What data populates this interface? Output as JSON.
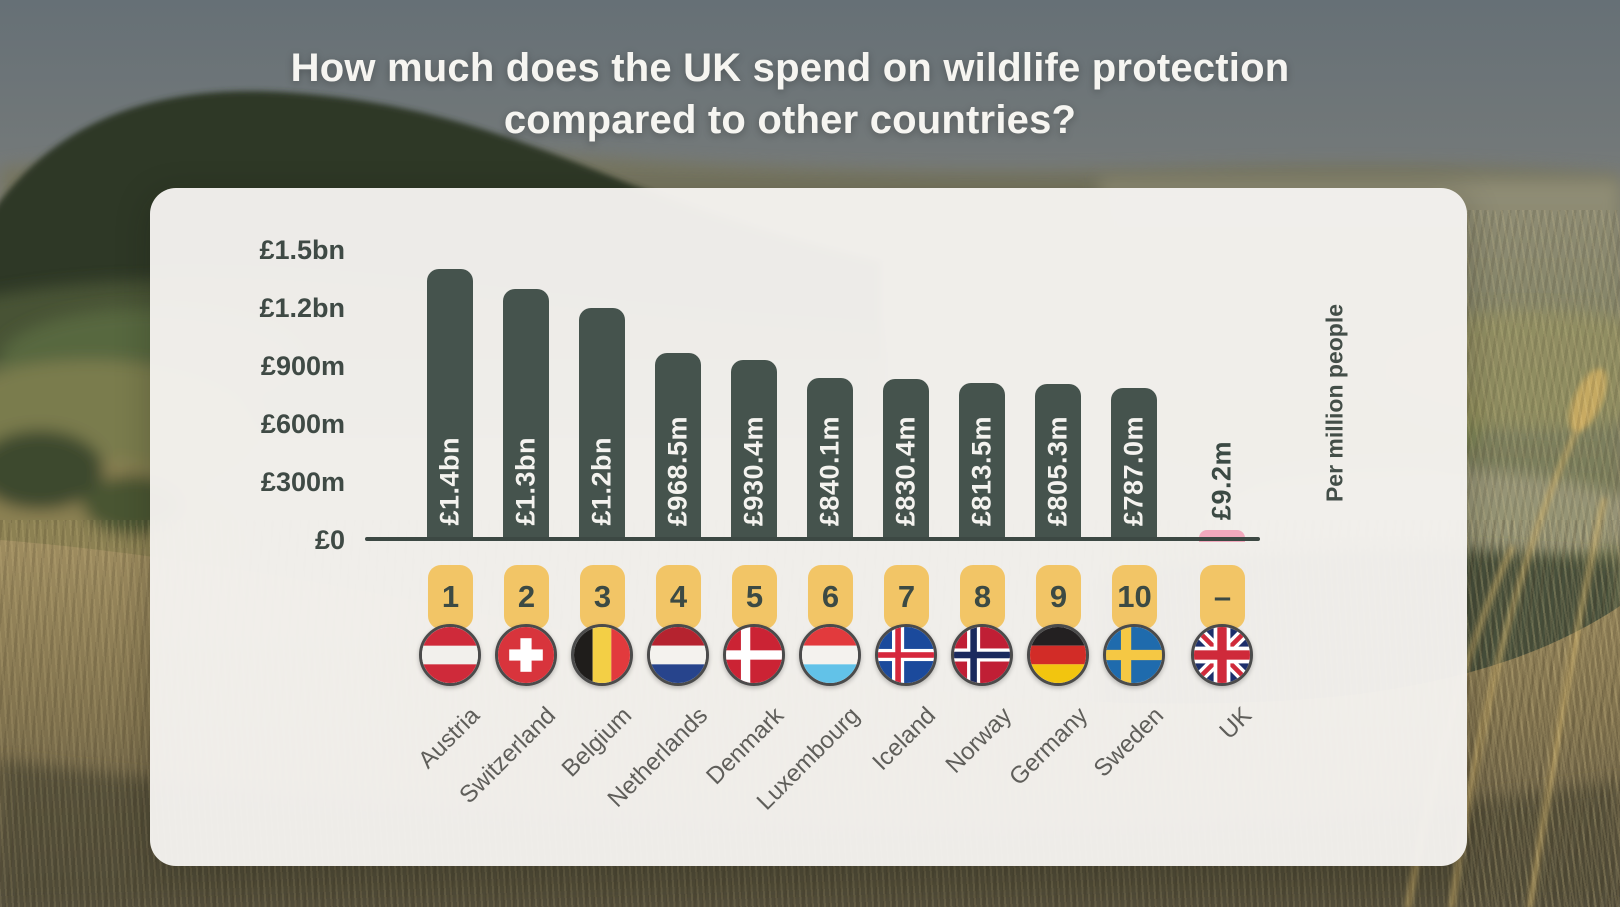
{
  "title": {
    "line1": "How much does the UK spend on wildlife protection",
    "line2": "compared to other countries?"
  },
  "chart_data": {
    "type": "bar",
    "title": "How much does the UK spend on wildlife protection compared to other countries?",
    "right_axis_label": "Per million people",
    "unit": "GBP per million people",
    "y_axis": {
      "min_m": 0,
      "max_m": 1500,
      "ticks": [
        {
          "label": "£1.5bn",
          "value_m": 1500
        },
        {
          "label": "£1.2bn",
          "value_m": 1200
        },
        {
          "label": "£900m",
          "value_m": 900
        },
        {
          "label": "£600m",
          "value_m": 600
        },
        {
          "label": "£300m",
          "value_m": 300
        },
        {
          "label": "£0",
          "value_m": 0
        }
      ]
    },
    "bars": [
      {
        "rank": "1",
        "country": "Austria",
        "label": "£1.4bn",
        "value_m": 1400,
        "flag": "austria",
        "highlight": false
      },
      {
        "rank": "2",
        "country": "Switzerland",
        "label": "£1.3bn",
        "value_m": 1300,
        "flag": "switzerland",
        "highlight": false
      },
      {
        "rank": "3",
        "country": "Belgium",
        "label": "£1.2bn",
        "value_m": 1200,
        "flag": "belgium",
        "highlight": false
      },
      {
        "rank": "4",
        "country": "Netherlands",
        "label": "£968.5m",
        "value_m": 968.5,
        "flag": "netherlands",
        "highlight": false
      },
      {
        "rank": "5",
        "country": "Denmark",
        "label": "£930.4m",
        "value_m": 930.4,
        "flag": "denmark",
        "highlight": false
      },
      {
        "rank": "6",
        "country": "Luxembourg",
        "label": "£840.1m",
        "value_m": 840.1,
        "flag": "luxembourg",
        "highlight": false
      },
      {
        "rank": "7",
        "country": "Iceland",
        "label": "£830.4m",
        "value_m": 830.4,
        "flag": "iceland",
        "highlight": false
      },
      {
        "rank": "8",
        "country": "Norway",
        "label": "£813.5m",
        "value_m": 813.5,
        "flag": "norway",
        "highlight": false
      },
      {
        "rank": "9",
        "country": "Germany",
        "label": "£805.3m",
        "value_m": 805.3,
        "flag": "germany",
        "highlight": false
      },
      {
        "rank": "10",
        "country": "Sweden",
        "label": "£787.0m",
        "value_m": 787.0,
        "flag": "sweden",
        "highlight": false
      },
      {
        "rank": "–",
        "country": "UK",
        "label": "£9.2m",
        "value_m": 9.2,
        "flag": "uk",
        "highlight": true
      }
    ],
    "colors": {
      "bar": "#45534d",
      "uk_bar": "#f2a9bd",
      "bar_label": "#f4f3ef",
      "uk_label_text": "#3c4a44",
      "badge": "#f2c566",
      "badge_text": "#3c4a44",
      "tick_text": "#3f4a45",
      "axis": "#3c4843",
      "country_text": "#5f5e5a"
    },
    "legend": null,
    "grid": false
  }
}
